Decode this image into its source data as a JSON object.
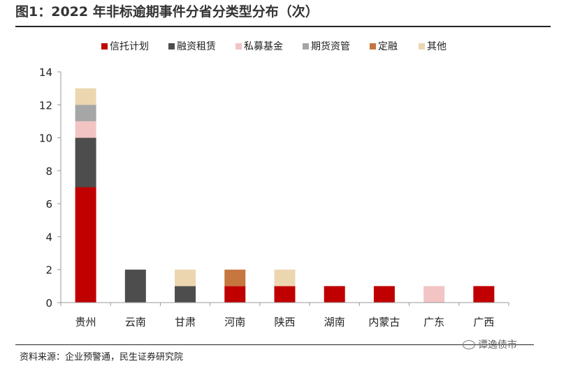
{
  "title": "图1：2022 年非标逾期事件分省分类型分布（次）",
  "source": "资料来源：企业预警通，民生证券研究院",
  "watermark": "谭逸债市",
  "watermark_icon": "wechat-icon",
  "chart_data": {
    "type": "bar",
    "stacked": true,
    "categories": [
      "贵州",
      "云南",
      "甘肃",
      "河南",
      "陕西",
      "湖南",
      "内蒙古",
      "广东",
      "广西"
    ],
    "series": [
      {
        "name": "信托计划",
        "color": "#c00000",
        "values": [
          7,
          0,
          0,
          1,
          1,
          1,
          1,
          0,
          1
        ]
      },
      {
        "name": "融资租赁",
        "color": "#4d4d4d",
        "values": [
          3,
          2,
          1,
          0,
          0,
          0,
          0,
          0,
          0
        ]
      },
      {
        "name": "私募基金",
        "color": "#f2c4c4",
        "values": [
          1,
          0,
          0,
          0,
          0,
          0,
          0,
          1,
          0
        ]
      },
      {
        "name": "期货资管",
        "color": "#a6a6a6",
        "values": [
          1,
          0,
          0,
          0,
          0,
          0,
          0,
          0,
          0
        ]
      },
      {
        "name": "定融",
        "color": "#c5773f",
        "values": [
          0,
          0,
          0,
          1,
          0,
          0,
          0,
          0,
          0
        ]
      },
      {
        "name": "其他",
        "color": "#ecd6b0",
        "values": [
          1,
          0,
          1,
          0,
          1,
          0,
          0,
          0,
          0
        ]
      }
    ],
    "ylim": [
      0,
      14
    ],
    "yticks": [
      0,
      2,
      4,
      6,
      8,
      10,
      12,
      14
    ],
    "legend": "top",
    "grid": false
  }
}
